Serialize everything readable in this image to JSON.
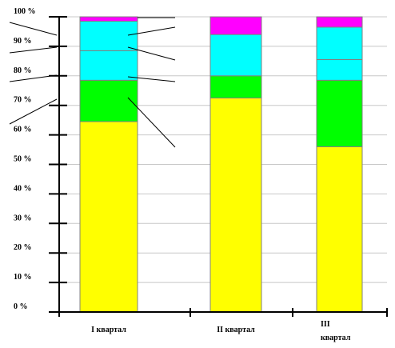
{
  "chart_data": {
    "type": "bar",
    "stacked": true,
    "percent": true,
    "categories": [
      "I квартал",
      "II квартал",
      "III квартал"
    ],
    "category_lines": [
      [
        "I квартал"
      ],
      [
        "II квартал"
      ],
      [
        "III",
        "квартал"
      ]
    ],
    "series": [
      {
        "color": "#ffff00",
        "values": [
          64.5,
          72.5,
          56
        ]
      },
      {
        "color": "#00ff00",
        "values": [
          14,
          7.5,
          22.5
        ]
      },
      {
        "color": "#00ffff",
        "values": [
          10,
          0,
          7
        ]
      },
      {
        "color": "#00ffff",
        "values": [
          10,
          14,
          11
        ]
      },
      {
        "color": "#ff00ff",
        "values": [
          1.5,
          6,
          3.5
        ]
      }
    ],
    "y_ticks": [
      "0 %",
      "10 %",
      "20 %",
      "30 %",
      "40 %",
      "50 %",
      "60 %",
      "70 %",
      "80 %",
      "90 %",
      "100 %"
    ],
    "ylim": [
      0,
      100
    ],
    "grid": true,
    "legend": "none",
    "title": "",
    "xlabel": "",
    "ylabel": ""
  }
}
